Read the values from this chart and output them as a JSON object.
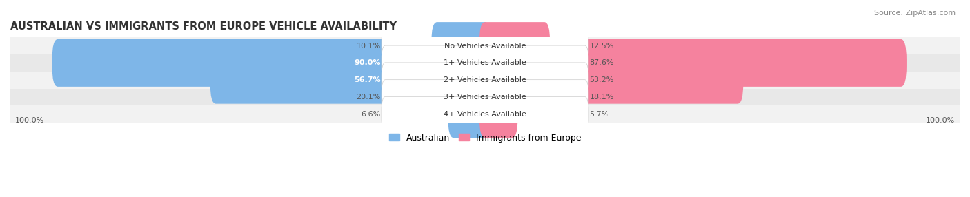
{
  "title": "AUSTRALIAN VS IMMIGRANTS FROM EUROPE VEHICLE AVAILABILITY",
  "source": "Source: ZipAtlas.com",
  "categories": [
    "No Vehicles Available",
    "1+ Vehicles Available",
    "2+ Vehicles Available",
    "3+ Vehicles Available",
    "4+ Vehicles Available"
  ],
  "australian_values": [
    10.1,
    90.0,
    56.7,
    20.1,
    6.6
  ],
  "immigrant_values": [
    12.5,
    87.6,
    53.2,
    18.1,
    5.7
  ],
  "australian_color": "#7EB6E8",
  "immigrant_color": "#F5829E",
  "row_bg_even": "#F2F2F2",
  "row_bg_odd": "#E8E8E8",
  "max_value": 100.0,
  "title_fontsize": 10.5,
  "label_fontsize": 8.0,
  "value_fontsize": 8.0,
  "legend_fontsize": 9,
  "source_fontsize": 8,
  "figsize": [
    14.06,
    2.86
  ],
  "dpi": 100
}
